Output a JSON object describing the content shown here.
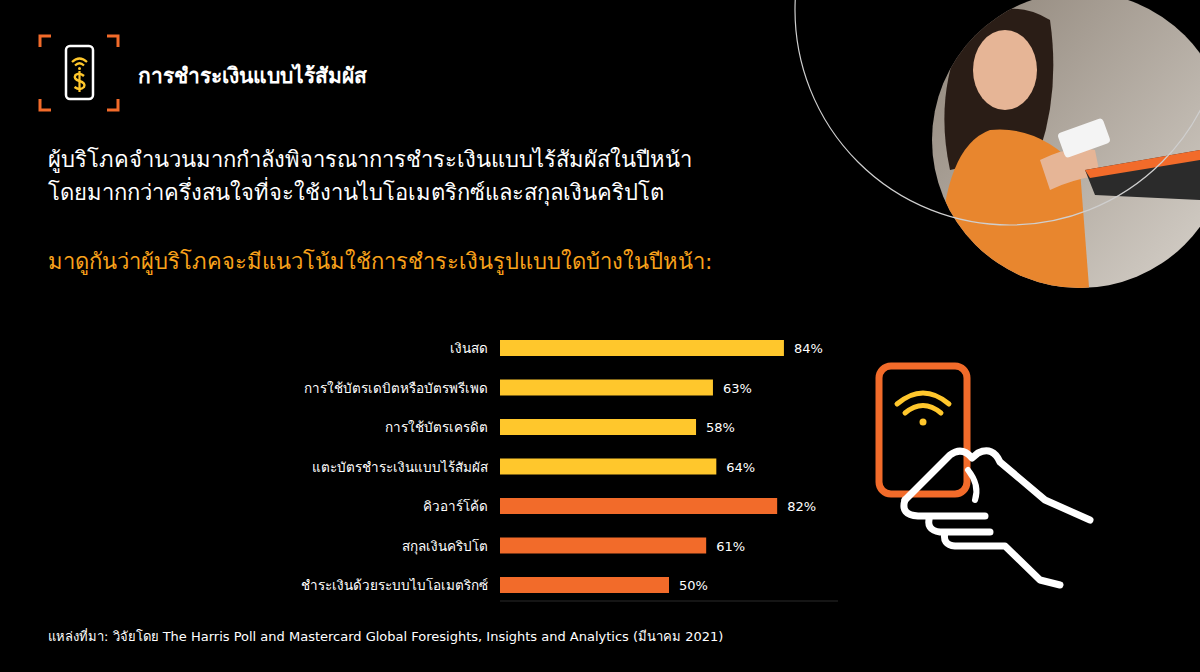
{
  "header": {
    "title": "การชำระเงินแบบไร้สัมผัส"
  },
  "headline": [
    "ผู้บริโภคจำนวนมากกำลังพิจารณาการชำระเงินแบบไร้สัมผัสในปีหน้า",
    "โดยมากกว่าครึ่งสนใจที่จะใช้งานไบโอเมตริกซ์และสกุลเงินคริปโต"
  ],
  "chart_data": {
    "type": "bar",
    "orientation": "horizontal",
    "title": "มาดูกันว่าผู้บริโภคจะมีแนวโน้มใช้การชำระเงินรูปแบบใดบ้างในปีหน้า:",
    "categories": [
      "เงินสด",
      "การใช้บัตรเดบิตหรือบัตรพรีเพด",
      "การใช้บัตรเครดิต",
      "แตะบัตรชำระเงินแบบไร้สัมผัส",
      "คิวอาร์โค้ด",
      "สกุลเงินคริปโต",
      "ชำระเงินด้วยระบบไบโอเมตริกซ์"
    ],
    "values": [
      84,
      63,
      58,
      64,
      82,
      61,
      50
    ],
    "value_labels": [
      "84%",
      "63%",
      "58%",
      "64%",
      "82%",
      "61%",
      "50%"
    ],
    "colors": [
      "#FFC72C",
      "#FFC72C",
      "#FFC72C",
      "#FFC72C",
      "#F26B2A",
      "#F26B2A",
      "#F26B2A"
    ],
    "xlim": [
      0,
      100
    ],
    "data_labels": true,
    "tick_labels": false,
    "grid": false
  },
  "source": "แหล่งที่มา: วิจัยโดย The Harris Poll and Mastercard Global Foresights, Insights and Analytics (มีนาคม 2021)"
}
